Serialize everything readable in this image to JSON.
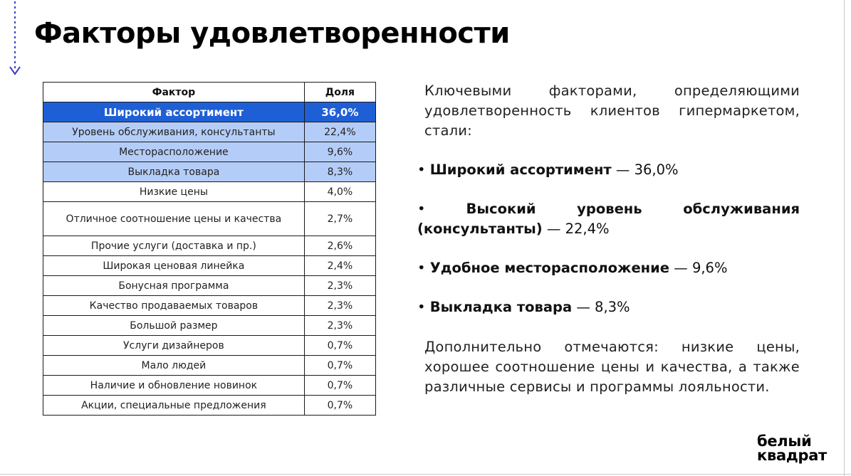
{
  "title": "Факторы удовлетворенности",
  "table": {
    "headers": {
      "factor": "Фактор",
      "share": "Доля"
    },
    "rows": [
      {
        "factor": "Широкий ассортимент",
        "share": "36,0%"
      },
      {
        "factor": "Уровень обслуживания, консультанты",
        "share": "22,4%"
      },
      {
        "factor": "Месторасположение",
        "share": "9,6%"
      },
      {
        "factor": "Выкладка товара",
        "share": "8,3%"
      },
      {
        "factor": "Низкие цены",
        "share": "4,0%"
      },
      {
        "factor": "Отличное соотношение цены и качества",
        "share": "2,7%"
      },
      {
        "factor": "Прочие услуги (доставка и пр.)",
        "share": "2,6%"
      },
      {
        "factor": "Широкая ценовая линейка",
        "share": "2,4%"
      },
      {
        "factor": "Бонусная программа",
        "share": "2,3%"
      },
      {
        "factor": "Качество продаваемых товаров",
        "share": "2,3%"
      },
      {
        "factor": "Большой размер",
        "share": "2,3%"
      },
      {
        "factor": "Услуги дизайнеров",
        "share": "0,7%"
      },
      {
        "factor": "Мало людей",
        "share": "0,7%"
      },
      {
        "factor": "Наличие и обновление новинок",
        "share": "0,7%"
      },
      {
        "factor": "Акции, специальные предложения",
        "share": "0,7%"
      }
    ]
  },
  "text": {
    "intro": "Ключевыми факторами, определяющими удовлетворенность клиентов гипермаркетом, стали:",
    "bullets": [
      {
        "marker": "•",
        "label": "Широкий ассортимент",
        "value": "— 36,0%"
      },
      {
        "marker": "•",
        "label": "Высокий уровень обслуживания (консультанты)",
        "value": "— 22,4%"
      },
      {
        "marker": "•",
        "label": "Удобное месторасположение",
        "value": "— 9,6%"
      },
      {
        "marker": "•",
        "label": "Выкладка товара",
        "value": "— 8,3%"
      }
    ],
    "extra": "Дополнительно отмечаются: низкие цены, хорошее соотношение цены и качества, а также различные сервисы и программы лояльности."
  },
  "logo": {
    "line1": "белый",
    "line2": "квадрат"
  },
  "colors": {
    "header_row_highlight": "#1f5fd6",
    "secondary_highlight": "#b4cdf8",
    "accent_arrow": "#3b3fc4"
  }
}
